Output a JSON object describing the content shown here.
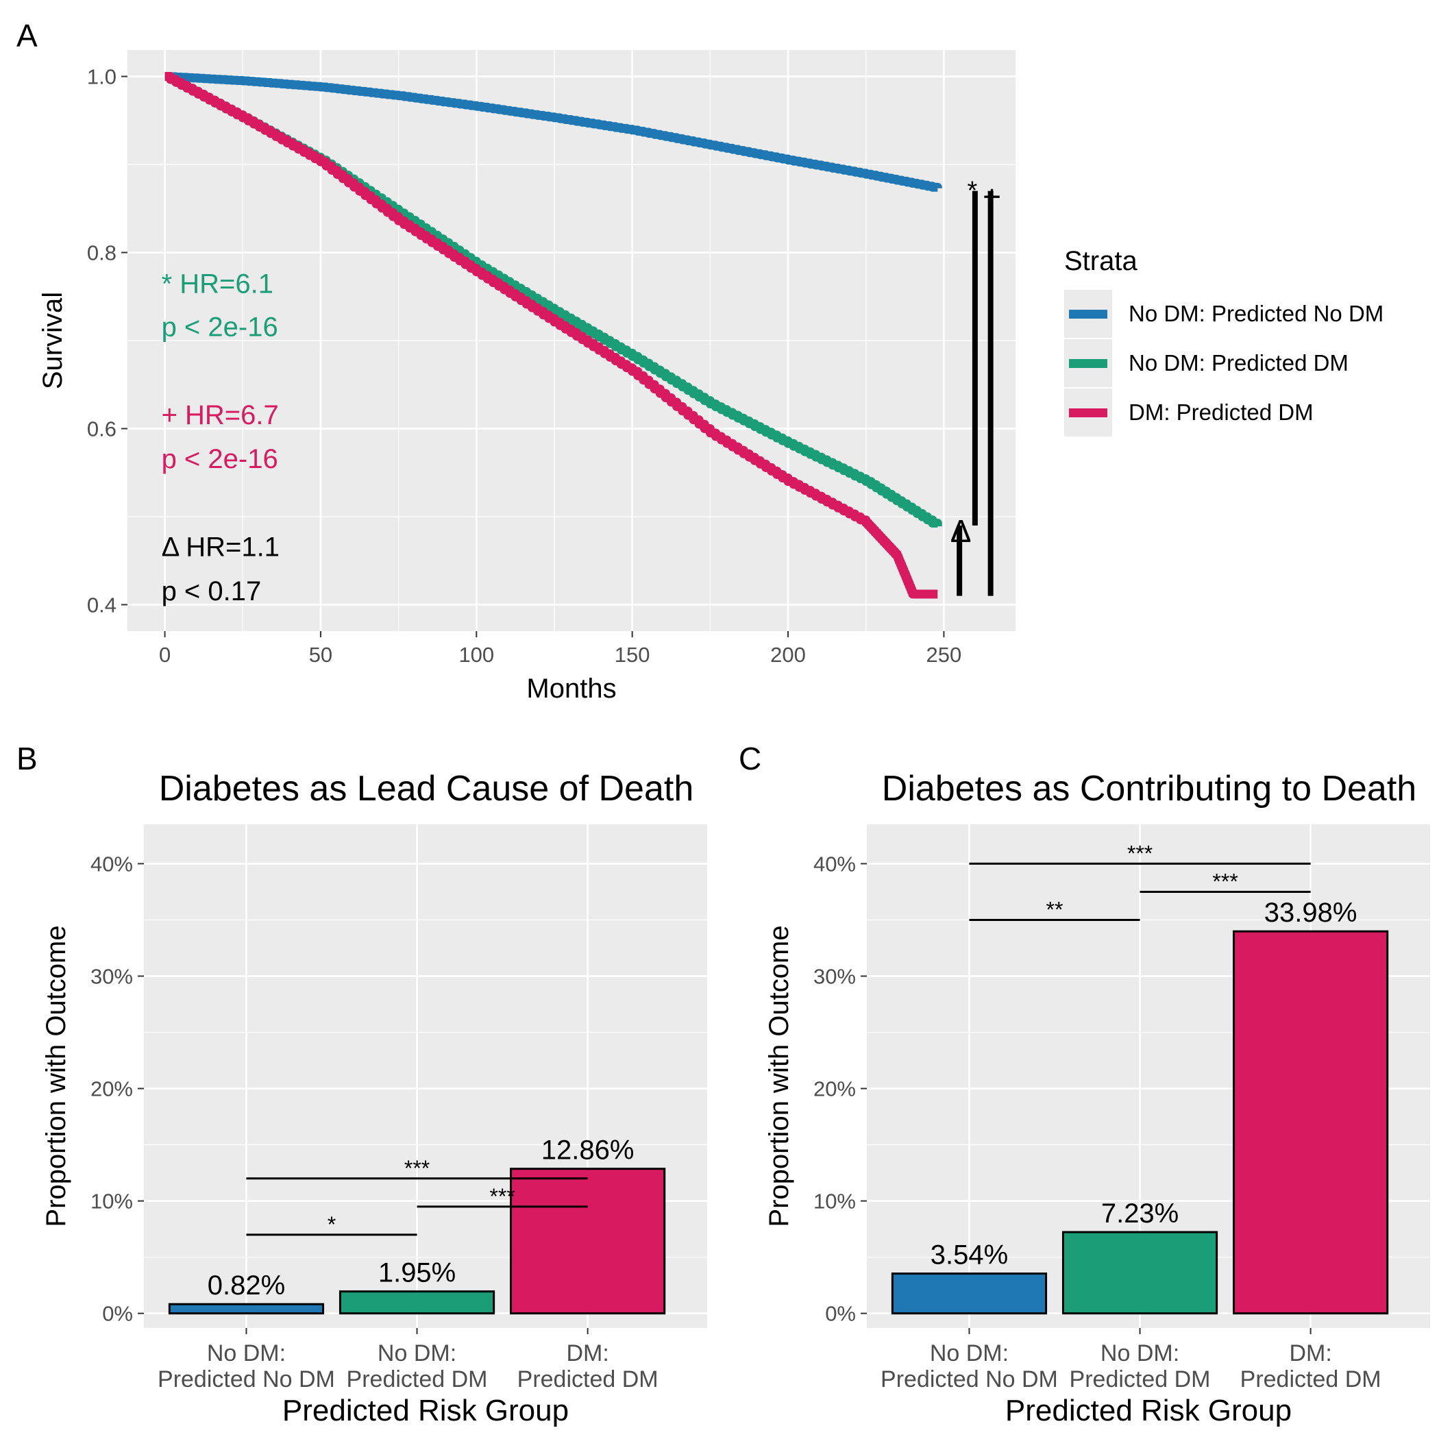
{
  "chart_data": [
    {
      "panel_label": "A",
      "type": "line",
      "xlabel": "Months",
      "ylabel": "Survival",
      "xlim": [
        -12,
        273
      ],
      "ylim": [
        0.37,
        1.03
      ],
      "x_ticks": [
        0,
        50,
        100,
        150,
        200,
        250
      ],
      "y_ticks": [
        0.4,
        0.6,
        0.8,
        1.0
      ],
      "x_tick_labels": [
        "0",
        "50",
        "100",
        "150",
        "200",
        "250"
      ],
      "y_tick_labels": [
        "0.4",
        "0.6",
        "0.8",
        "1.0"
      ],
      "grid": true,
      "legend": {
        "title": "Strata",
        "position": "right",
        "entries": [
          "No DM: Predicted No DM",
          "No DM: Predicted DM",
          "DM: Predicted DM"
        ]
      },
      "colors": {
        "no_dm_pred_no_dm": "#1f78b4",
        "no_dm_pred_dm": "#1b9e77",
        "dm_pred_dm": "#d81b60",
        "black": "#000000"
      },
      "series": [
        {
          "name": "No DM: Predicted No DM",
          "x": [
            0,
            25,
            50,
            75,
            100,
            125,
            150,
            175,
            200,
            225,
            248
          ],
          "y": [
            1.0,
            0.995,
            0.988,
            0.978,
            0.966,
            0.953,
            0.939,
            0.922,
            0.905,
            0.889,
            0.873
          ]
        },
        {
          "name": "No DM: Predicted DM",
          "x": [
            0,
            25,
            50,
            75,
            100,
            125,
            150,
            175,
            200,
            225,
            248
          ],
          "y": [
            1.0,
            0.953,
            0.905,
            0.845,
            0.786,
            0.733,
            0.682,
            0.628,
            0.583,
            0.54,
            0.489
          ]
        },
        {
          "name": "DM: Predicted DM",
          "x": [
            0,
            25,
            50,
            75,
            100,
            125,
            150,
            175,
            200,
            225,
            235,
            240,
            248
          ],
          "y": [
            1.0,
            0.953,
            0.903,
            0.836,
            0.778,
            0.721,
            0.665,
            0.595,
            0.54,
            0.493,
            0.455,
            0.412,
            0.412
          ]
        }
      ],
      "annotations": [
        {
          "text_line1": "* HR=6.1",
          "text_line2": "p < 2e-16",
          "color": "#1b9e77"
        },
        {
          "text_line1": "+ HR=6.7",
          "text_line2": "p < 2e-16",
          "color": "#d81b60"
        },
        {
          "text_line1": "Δ HR=1.1",
          "text_line2": " p < 0.17",
          "color": "#000000"
        }
      ],
      "brackets": [
        {
          "symbol": "Δ",
          "x": 255,
          "y_low": 0.41,
          "y_high": 0.49
        },
        {
          "symbol": "*",
          "x": 260,
          "y_low": 0.49,
          "y_high": 0.87
        },
        {
          "symbol": "+",
          "x": 265,
          "y_low": 0.41,
          "y_high": 0.87
        }
      ]
    },
    {
      "panel_label": "B",
      "type": "bar",
      "title": "Diabetes as Lead Cause of Death",
      "xlabel": "Predicted Risk Group",
      "ylabel": "Proportion with Outcome",
      "categories": [
        [
          "No DM:",
          "Predicted No DM"
        ],
        [
          "No DM:",
          "Predicted DM"
        ],
        [
          "DM:",
          "Predicted DM"
        ]
      ],
      "values": [
        0.82,
        1.95,
        12.86
      ],
      "value_labels": [
        "0.82%",
        "1.95%",
        "12.86%"
      ],
      "ylim": [
        -1.3,
        43.5
      ],
      "y_ticks": [
        0,
        10,
        20,
        30,
        40
      ],
      "y_tick_labels": [
        "0%",
        "10%",
        "20%",
        "30%",
        "40%"
      ],
      "grid": true,
      "significance": [
        {
          "from": 1,
          "to": 2,
          "y": 7.0,
          "label": "*"
        },
        {
          "from": 2,
          "to": 3,
          "y": 9.5,
          "label": "***"
        },
        {
          "from": 1,
          "to": 3,
          "y": 12.0,
          "label": "***"
        }
      ]
    },
    {
      "panel_label": "C",
      "type": "bar",
      "title": "Diabetes as Contributing to Death",
      "xlabel": "Predicted Risk Group",
      "ylabel": "Proportion with Outcome",
      "categories": [
        [
          "No DM:",
          "Predicted No DM"
        ],
        [
          "No DM:",
          "Predicted DM"
        ],
        [
          "DM:",
          "Predicted DM"
        ]
      ],
      "values": [
        3.54,
        7.23,
        33.98
      ],
      "value_labels": [
        "3.54%",
        "7.23%",
        "33.98%"
      ],
      "ylim": [
        -1.3,
        43.5
      ],
      "y_ticks": [
        0,
        10,
        20,
        30,
        40
      ],
      "y_tick_labels": [
        "0%",
        "10%",
        "20%",
        "30%",
        "40%"
      ],
      "grid": true,
      "significance": [
        {
          "from": 1,
          "to": 2,
          "y": 35.0,
          "label": "**"
        },
        {
          "from": 2,
          "to": 3,
          "y": 37.5,
          "label": "***"
        },
        {
          "from": 1,
          "to": 3,
          "y": 40.0,
          "label": "***"
        }
      ]
    }
  ]
}
